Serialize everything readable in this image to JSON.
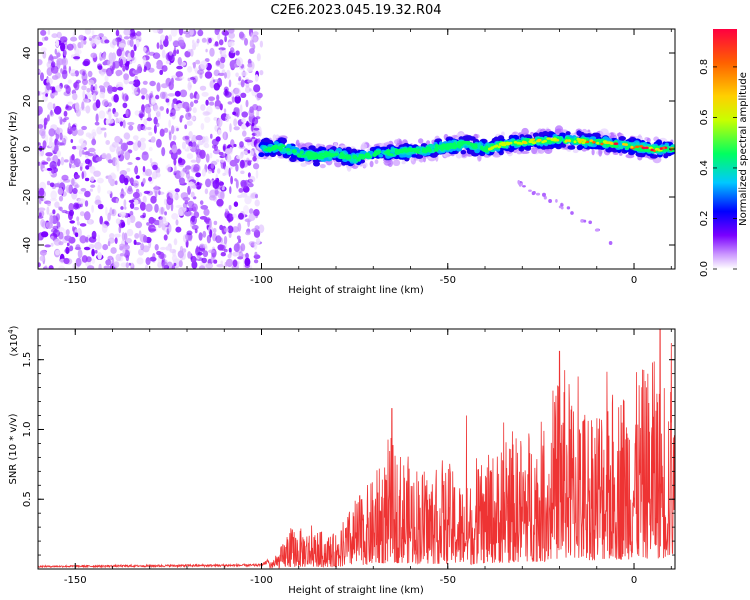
{
  "title": "C2E6.2023.045.19.32.R04",
  "chart_data": [
    {
      "type": "heatmap",
      "xlabel": "Height of straight line (km)",
      "ylabel": "Frequency (Hz)",
      "xlim": [
        -160,
        11
      ],
      "ylim": [
        -50,
        50
      ],
      "xticks": [
        -150,
        -100,
        -50,
        0
      ],
      "xtick_labels": [
        "-150",
        "-100",
        "-50",
        "0"
      ],
      "yticks": [
        40,
        20,
        0,
        -20,
        -40
      ],
      "ytick_labels": [
        "40",
        "20",
        "0",
        "-20",
        "-40"
      ],
      "noise_region_x": [
        -160,
        -100
      ],
      "signal_track": [
        {
          "x": -100,
          "y": 0
        },
        {
          "x": -95,
          "y": 1
        },
        {
          "x": -90,
          "y": -2
        },
        {
          "x": -85,
          "y": -3
        },
        {
          "x": -80,
          "y": -2
        },
        {
          "x": -75,
          "y": -4
        },
        {
          "x": -70,
          "y": -2
        },
        {
          "x": -60,
          "y": -1
        },
        {
          "x": -55,
          "y": 0
        },
        {
          "x": -50,
          "y": 1
        },
        {
          "x": -45,
          "y": 2
        },
        {
          "x": -40,
          "y": 0
        },
        {
          "x": -35,
          "y": 2
        },
        {
          "x": -30,
          "y": 3
        },
        {
          "x": -20,
          "y": 4
        },
        {
          "x": -10,
          "y": 3
        },
        {
          "x": 0,
          "y": 1
        },
        {
          "x": 5,
          "y": 0
        },
        {
          "x": 11,
          "y": 0
        }
      ],
      "faint_branch": [
        {
          "x": -32,
          "y": -14
        },
        {
          "x": -25,
          "y": -19
        },
        {
          "x": -18,
          "y": -25
        },
        {
          "x": -12,
          "y": -31
        },
        {
          "x": -6,
          "y": -40
        }
      ],
      "colorbar": {
        "label": "Normalized spectral amplitude",
        "range": [
          0,
          0.95
        ],
        "ticks": [
          0.0,
          0.2,
          0.4,
          0.6,
          0.8
        ],
        "tick_labels": [
          "0.0",
          "0.2",
          "0.4",
          "0.6",
          "0.8"
        ],
        "colors": [
          "#ffffff",
          "#cc99ff",
          "#7a00ff",
          "#0000ff",
          "#00c8ff",
          "#00ff60",
          "#c8ff00",
          "#ffd000",
          "#ff6000",
          "#ff0040"
        ]
      }
    },
    {
      "type": "line",
      "xlabel": "Height of straight line (km)",
      "ylabel": "SNR (10 * v/v)",
      "y_multiplier": "(x10",
      "y_multiplier_exp": "4",
      "xlim": [
        -160,
        11
      ],
      "ylim": [
        0,
        1.72
      ],
      "xticks": [
        -150,
        -100,
        -50,
        0
      ],
      "xtick_labels": [
        "-150",
        "-100",
        "-50",
        "0"
      ],
      "yticks": [
        0.5,
        1.0,
        1.5
      ],
      "ytick_labels": [
        "0.5",
        "1.0",
        "1.5"
      ],
      "color": "#ee3333",
      "series": [
        {
          "envelope": [
            {
              "x": -160,
              "y": 0.02
            },
            {
              "x": -100,
              "y": 0.03
            },
            {
              "x": -96,
              "y": 0.1
            },
            {
              "x": -92,
              "y": 0.3
            },
            {
              "x": -85,
              "y": 0.28
            },
            {
              "x": -80,
              "y": 0.25
            },
            {
              "x": -75,
              "y": 0.5
            },
            {
              "x": -70,
              "y": 0.65
            },
            {
              "x": -65,
              "y": 0.9
            },
            {
              "x": -60,
              "y": 0.8
            },
            {
              "x": -55,
              "y": 0.7
            },
            {
              "x": -50,
              "y": 0.75
            },
            {
              "x": -45,
              "y": 0.6
            },
            {
              "x": -40,
              "y": 0.8
            },
            {
              "x": -35,
              "y": 0.9
            },
            {
              "x": -30,
              "y": 1.0
            },
            {
              "x": -22,
              "y": 1.1
            },
            {
              "x": -20,
              "y": 1.55
            },
            {
              "x": -15,
              "y": 1.2
            },
            {
              "x": -10,
              "y": 1.25
            },
            {
              "x": -5,
              "y": 1.3
            },
            {
              "x": 0,
              "y": 1.4
            },
            {
              "x": 5,
              "y": 1.5
            },
            {
              "x": 8,
              "y": 1.5
            },
            {
              "x": 11,
              "y": 1.2
            }
          ],
          "peaks": [
            {
              "x": -65,
              "y": 1.15
            },
            {
              "x": -45,
              "y": 1.1
            },
            {
              "x": -35,
              "y": 1.05
            },
            {
              "x": -20,
              "y": 1.56
            },
            {
              "x": -15,
              "y": 1.38
            },
            {
              "x": 5,
              "y": 1.48
            },
            {
              "x": 7,
              "y": 1.72
            },
            {
              "x": 10,
              "y": 1.62
            }
          ]
        }
      ]
    }
  ]
}
